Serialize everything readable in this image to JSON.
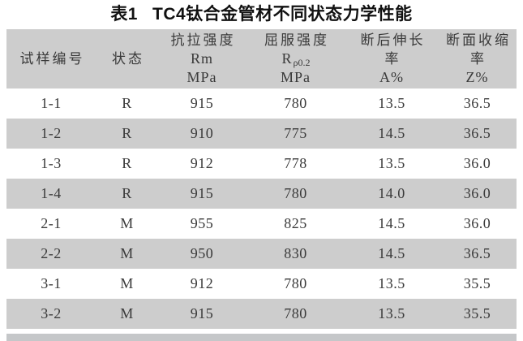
{
  "caption": {
    "label": "表1",
    "title": "TC4钛合金管材不同状态力学性能"
  },
  "table": {
    "header": {
      "sample": "试样编号",
      "state": "状态",
      "tensile": {
        "name": "抗拉强度",
        "symbol": "Rm",
        "unit": "MPa"
      },
      "yield": {
        "name": "屈服强度",
        "symbol_main": "R",
        "symbol_sub": "ρ0.2",
        "unit": "MPa"
      },
      "elongation": {
        "name": "断后伸长",
        "name2": "率",
        "symbol": "A%"
      },
      "reduction": {
        "name": "断面收缩",
        "name2": "率",
        "symbol": "Z%"
      }
    },
    "rows": [
      {
        "sample": "1-1",
        "state": "R",
        "tensile": "915",
        "yield": "780",
        "elongation": "13.5",
        "reduction": "36.5"
      },
      {
        "sample": "1-2",
        "state": "R",
        "tensile": "910",
        "yield": "775",
        "elongation": "14.5",
        "reduction": "36.5"
      },
      {
        "sample": "1-3",
        "state": "R",
        "tensile": "912",
        "yield": "778",
        "elongation": "13.5",
        "reduction": "36.0"
      },
      {
        "sample": "1-4",
        "state": "R",
        "tensile": "915",
        "yield": "780",
        "elongation": "14.0",
        "reduction": "36.0"
      },
      {
        "sample": "2-1",
        "state": "M",
        "tensile": "955",
        "yield": "825",
        "elongation": "14.5",
        "reduction": "36.0"
      },
      {
        "sample": "2-2",
        "state": "M",
        "tensile": "950",
        "yield": "830",
        "elongation": "14.5",
        "reduction": "36.5"
      },
      {
        "sample": "3-1",
        "state": "M",
        "tensile": "912",
        "yield": "780",
        "elongation": "13.5",
        "reduction": "35.5"
      },
      {
        "sample": "3-2",
        "state": "M",
        "tensile": "915",
        "yield": "780",
        "elongation": "13.5",
        "reduction": "35.5"
      }
    ],
    "colors": {
      "band": "#cdcdcd",
      "text": "#3a3a3a",
      "caption_text": "#111111",
      "bottom_strip": "#c5c7c9"
    }
  }
}
